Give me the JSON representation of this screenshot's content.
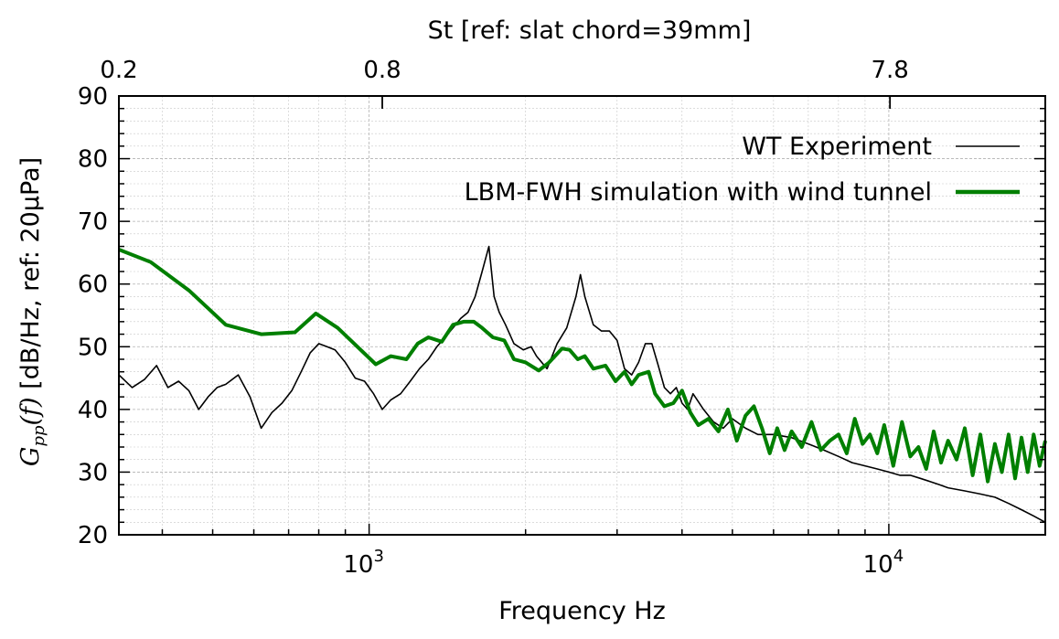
{
  "chart_data": {
    "type": "line",
    "xscale": "log",
    "xlabel": "Frequency Hz",
    "ylabel_math": "G_pp(f)",
    "ylabel_rest": " [dB/Hz, ref: 20μPa]",
    "top_xlabel": "St [ref: slat chord=39mm]",
    "xlim": [
      330,
      20000
    ],
    "ylim": [
      20,
      90
    ],
    "yticks": [
      20,
      30,
      40,
      50,
      60,
      70,
      80,
      90
    ],
    "xticks_major": [
      1000,
      10000
    ],
    "xtick_labels": [
      "10",
      "10"
    ],
    "xtick_exponents": [
      "3",
      "4"
    ],
    "top_ticks": [
      {
        "label": "0.2",
        "freq": 330
      },
      {
        "label": "0.8",
        "freq": 1060
      },
      {
        "label": "7.8",
        "freq": 10050
      }
    ],
    "grid": true,
    "legend_position": "top-right",
    "series": [
      {
        "name": "WT Experiment",
        "color": "#000000",
        "x": [
          330,
          350,
          370,
          390,
          410,
          430,
          450,
          470,
          490,
          510,
          530,
          560,
          590,
          620,
          650,
          680,
          710,
          740,
          770,
          800,
          830,
          860,
          900,
          940,
          980,
          1020,
          1060,
          1100,
          1150,
          1200,
          1250,
          1300,
          1350,
          1400,
          1450,
          1500,
          1550,
          1600,
          1650,
          1700,
          1740,
          1780,
          1830,
          1900,
          1980,
          2050,
          2100,
          2200,
          2300,
          2400,
          2500,
          2550,
          2600,
          2700,
          2800,
          2900,
          3000,
          3100,
          3200,
          3300,
          3400,
          3500,
          3600,
          3700,
          3800,
          3900,
          4000,
          4100,
          4200,
          4400,
          4600,
          4800,
          5000,
          5300,
          5600,
          6000,
          6500,
          7000,
          7500,
          8000,
          8500,
          9000,
          9500,
          10000,
          10500,
          11000,
          11500,
          12000,
          12500,
          13000,
          14000,
          15000,
          16000,
          17000,
          18000,
          19000,
          20000
        ],
        "y": [
          45.5,
          43.5,
          44.8,
          47,
          43.5,
          44.5,
          43,
          40,
          42,
          43.5,
          44,
          45.5,
          42,
          37,
          39.5,
          41,
          43,
          46,
          49,
          50.5,
          50,
          49.5,
          47.5,
          45,
          44.5,
          42.5,
          40,
          41.5,
          42.5,
          44.5,
          46.5,
          48,
          50,
          51.5,
          53,
          54.5,
          55.5,
          58,
          62,
          66,
          58,
          55.5,
          53.5,
          50.5,
          49.5,
          50,
          48.5,
          46.5,
          50.5,
          53,
          58,
          61.5,
          58,
          53.5,
          52.5,
          52.5,
          51,
          46.5,
          45.5,
          47.5,
          50.5,
          50.5,
          47,
          43.5,
          42.5,
          43.5,
          41,
          40,
          42.5,
          40,
          38,
          37,
          38.5,
          37,
          36,
          36,
          35.5,
          34.5,
          33.5,
          32.5,
          31.5,
          31,
          30.5,
          30,
          29.5,
          29.5,
          29,
          28.5,
          28,
          27.5,
          27,
          26.5,
          26,
          25,
          24,
          23,
          22
        ]
      },
      {
        "name": "LBM-FWH simulation with wind tunnel",
        "color": "#007f00",
        "x": [
          330,
          380,
          450,
          530,
          620,
          720,
          790,
          870,
          1030,
          1100,
          1180,
          1240,
          1300,
          1380,
          1450,
          1520,
          1590,
          1650,
          1730,
          1820,
          1900,
          2000,
          2120,
          2220,
          2350,
          2430,
          2520,
          2600,
          2700,
          2850,
          2980,
          3100,
          3200,
          3300,
          3450,
          3550,
          3700,
          3850,
          4000,
          4150,
          4300,
          4500,
          4700,
          4900,
          5100,
          5300,
          5500,
          5700,
          5900,
          6100,
          6300,
          6500,
          6800,
          7100,
          7400,
          7700,
          8000,
          8300,
          8600,
          8900,
          9200,
          9500,
          9800,
          10200,
          10600,
          11000,
          11400,
          11800,
          12200,
          12600,
          13000,
          13500,
          14000,
          14500,
          15000,
          15500,
          16000,
          16500,
          17000,
          17500,
          18000,
          18500,
          19000,
          19500,
          20000
        ],
        "y": [
          65.5,
          63.5,
          59,
          53.5,
          52,
          52.3,
          55.3,
          53,
          47.2,
          48.5,
          48,
          50.5,
          51.5,
          50.8,
          53.5,
          54,
          54,
          53,
          51.5,
          51,
          48,
          47.5,
          46.2,
          47.5,
          49.7,
          49.5,
          48,
          48.5,
          46.5,
          47,
          44.5,
          46,
          44,
          45.5,
          46,
          42.5,
          40.5,
          41,
          43,
          39.5,
          37.5,
          38.5,
          36.5,
          40,
          35,
          39,
          40.5,
          37,
          33,
          37,
          33.5,
          36.5,
          34,
          38,
          33.5,
          35,
          36,
          33,
          38.5,
          34.5,
          36,
          33,
          37.5,
          31,
          38,
          32.5,
          34,
          30.5,
          36.5,
          31.5,
          35,
          32,
          37,
          29.5,
          36,
          28.5,
          34.5,
          30,
          36,
          29,
          35.5,
          30,
          36,
          31,
          35
        ]
      }
    ]
  }
}
